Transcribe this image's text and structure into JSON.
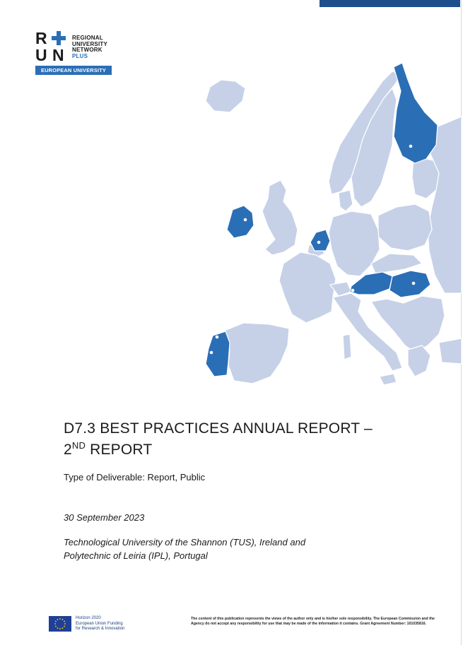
{
  "logo": {
    "letters": [
      "R",
      "U",
      "N"
    ],
    "lines": [
      "REGIONAL",
      "UNIVERSITY",
      "NETWORK"
    ],
    "plus_word": "PLUS",
    "band_label": "EUROPEAN UNIVERSITY",
    "accent_color": "#2a6eb6"
  },
  "map": {
    "highlight_color": "#2a6eb6",
    "land_color": "#c6d1e8",
    "highlighted_countries": [
      "Finland",
      "Ireland",
      "Netherlands",
      "Austria",
      "Hungary",
      "Portugal"
    ]
  },
  "title": {
    "line1": "D7.3 BEST PRACTICES ANNUAL REPORT –",
    "line2_number": "2",
    "line2_sup": "ND",
    "line2_rest": " REPORT"
  },
  "deliverable_type": "Type of Deliverable: Report, Public",
  "date": "30 September 2023",
  "authors": {
    "line1": "Technological University of the Shannon (TUS), Ireland and",
    "line2": "Polytechnic of Leiria (IPL), Portugal"
  },
  "footer": {
    "eu_lines": [
      "Horizon 2020",
      "European Union Funding",
      "for Research & Innovation"
    ],
    "disclaimer": "The content of this publication represents the views of the author only and is his/her sole responsibility. The European Commission and the Agency do not accept any responsibility for use that may be made of the information it contains. Grant Agreement Number: 101035816."
  }
}
